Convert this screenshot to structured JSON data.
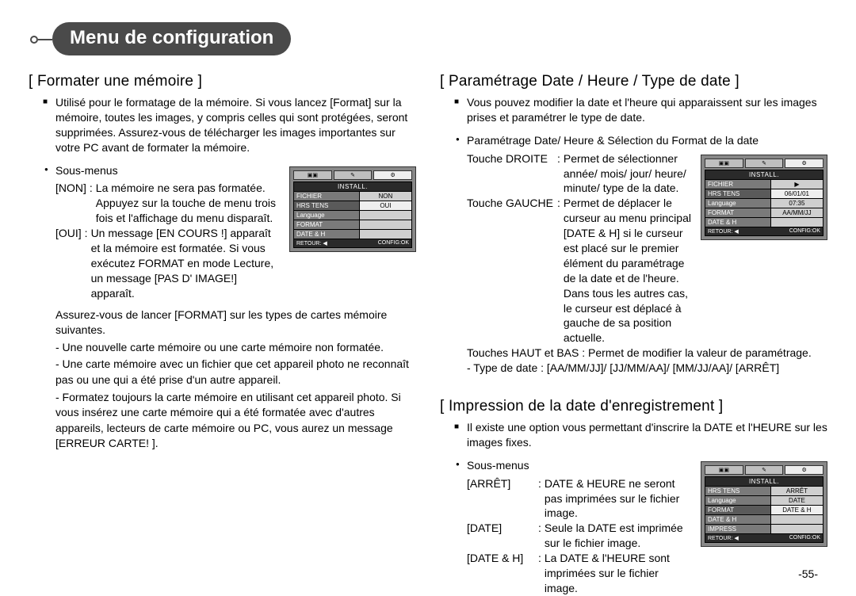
{
  "title": "Menu de configuration",
  "page_number": "-55-",
  "left": {
    "section_title": "[ Formater une mémoire ]",
    "intro": "Utilisé pour le formatage de la mémoire. Si vous lancez [Format] sur la mémoire, toutes les images, y compris celles qui sont protégées, seront supprimées. Assurez-vous de télécharger les images importantes sur votre PC avant de formater la mémoire.",
    "submenus_label": "Sous-menus",
    "rows": [
      {
        "key": "[NON]",
        "sep": ":",
        "val": "La mémoire ne sera pas formatée. Appuyez sur la touche de menu trois fois et l'affichage du menu disparaît."
      },
      {
        "key": "[OUI]",
        "sep": ":",
        "val": "Un message [EN COURS !] apparaît et la mémoire est formatée. Si vous exécutez FORMAT en mode Lecture, un message [PAS D' IMAGE!] apparaît."
      }
    ],
    "note_intro": "Assurez-vous de lancer [FORMAT] sur les types de cartes mémoire suivantes.",
    "notes": [
      "- Une nouvelle carte mémoire ou une carte mémoire non formatée.",
      "- Une carte mémoire avec un fichier que cet appareil photo ne reconnaît pas ou une qui a été prise d'un autre appareil.",
      "- Formatez toujours la carte mémoire en utilisant cet appareil photo. Si vous insérez une carte mémoire qui a été formatée avec d'autres appareils, lecteurs de carte mémoire ou PC, vous aurez un message [ERREUR CARTE! ]."
    ],
    "lcd": {
      "header": "INSTALL.",
      "menu": [
        {
          "l": "FICHIER",
          "r": "NON"
        },
        {
          "l": "HRS TENS",
          "r": "OUI"
        },
        {
          "l": "Language",
          "r": ""
        },
        {
          "l": "FORMAT",
          "r": ""
        },
        {
          "l": "DATE & H",
          "r": ""
        }
      ],
      "foot_l": "RETOUR: ◀",
      "foot_r": "CONFIG:OK"
    }
  },
  "right_top": {
    "section_title": "[ Paramétrage Date / Heure / Type de date ]",
    "intro": "Vous pouvez modifier la date et l'heure qui apparaissent sur les images prises et paramétrer le type de date.",
    "bullet": "Paramétrage Date/ Heure & Sélection du Format de la date",
    "keys": [
      {
        "key": "Touche DROITE",
        "sep": ":",
        "val": "Permet de sélectionner année/ mois/ jour/ heure/ minute/ type de la date."
      },
      {
        "key": "Touche GAUCHE",
        "sep": ":",
        "val": "Permet de déplacer le curseur au menu principal [DATE & H] si le curseur est placé sur le premier élément du paramétrage de la date et de l'heure. Dans tous les autres cas, le curseur est déplacé à gauche de sa position actuelle."
      }
    ],
    "line3": "Touches HAUT et BAS : Permet de modifier la valeur de paramétrage.",
    "line4": "- Type de date : [AA/MM/JJ]/ [JJ/MM/AA]/ [MM/JJ/AA]/ [ARRÊT]",
    "lcd": {
      "header": "INSTALL.",
      "menu": [
        {
          "l": "FICHIER",
          "r": "▶"
        },
        {
          "l": "HRS TENS",
          "r": "06/01/01"
        },
        {
          "l": "Language",
          "r": "07:35"
        },
        {
          "l": "FORMAT",
          "r": "AA/MM/JJ"
        },
        {
          "l": "DATE & H",
          "r": ""
        }
      ],
      "foot_l": "RETOUR: ◀",
      "foot_r": "CONFIG:OK"
    }
  },
  "right_bottom": {
    "section_title": "[ Impression de la date d'enregistrement ]",
    "intro": "Il existe une option vous permettant d'inscrire la DATE et l'HEURE sur les images fixes.",
    "submenus_label": "Sous-menus",
    "rows": [
      {
        "key": "[ARRÊT]",
        "sep": ":",
        "val": "DATE & HEURE ne seront pas imprimées sur le fichier image."
      },
      {
        "key": "[DATE]",
        "sep": ":",
        "val": "Seule la DATE est imprimée sur le fichier image."
      },
      {
        "key": "[DATE & H]",
        "sep": ":",
        "val": "La DATE & l'HEURE sont imprimées sur le fichier image."
      }
    ],
    "lcd": {
      "header": "INSTALL.",
      "menu": [
        {
          "l": "HRS TENS",
          "r": "ARRÊT"
        },
        {
          "l": "Language",
          "r": "DATE"
        },
        {
          "l": "FORMAT",
          "r": "DATE & H"
        },
        {
          "l": "DATE & H",
          "r": ""
        },
        {
          "l": "IMPRESS",
          "r": ""
        }
      ],
      "foot_l": "RETOUR: ◀",
      "foot_r": "CONFIG:OK"
    }
  }
}
